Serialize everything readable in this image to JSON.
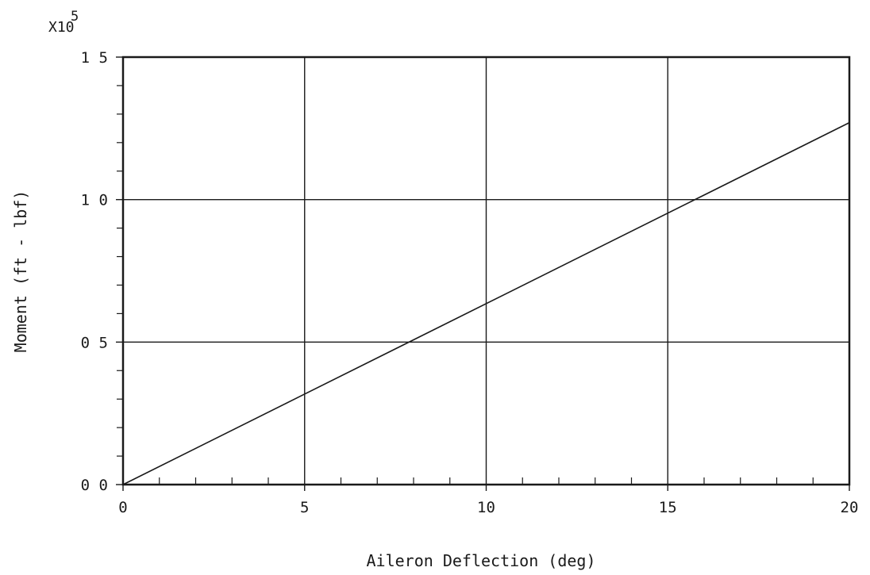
{
  "chart_data": {
    "type": "line",
    "title": "",
    "xlabel": "Aileron Deflection (deg)",
    "ylabel": "Moment (ft - lbf)",
    "y_scale_multiplier": "X10",
    "y_scale_exponent": "5",
    "xlim": [
      0,
      20
    ],
    "ylim": [
      0.0,
      1.5
    ],
    "x_ticks": [
      0,
      5,
      10,
      15,
      20
    ],
    "x_tick_labels": [
      "0",
      "5",
      "10",
      "15",
      "20"
    ],
    "y_ticks": [
      0.0,
      0.5,
      1.0,
      1.5
    ],
    "y_tick_labels": [
      "0 0",
      "0 5",
      "1 0",
      "1 5"
    ],
    "grid": true,
    "legend": "none",
    "series": [
      {
        "x": [
          0,
          20
        ],
        "y": [
          0.0,
          1.27
        ]
      }
    ],
    "colors": {
      "line": "#1a1a1a",
      "grid": "#1a1a1a",
      "background": "#ffffff"
    }
  }
}
